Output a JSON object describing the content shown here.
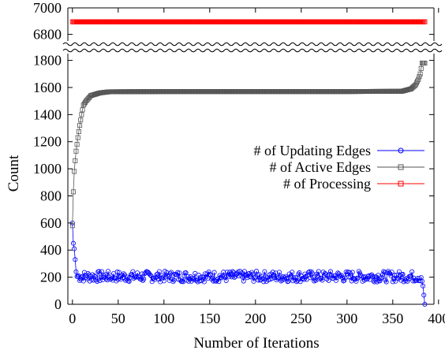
{
  "chart_data": {
    "type": "line",
    "xlabel": "Number of Iterations",
    "ylabel": "Count",
    "xlim": [
      -5,
      395
    ],
    "x_ticks": [
      0,
      50,
      100,
      150,
      200,
      250,
      300,
      350,
      400
    ],
    "y_lower_range": [
      0,
      1850
    ],
    "y_lower_ticks": [
      0,
      200,
      400,
      600,
      800,
      1000,
      1200,
      1400,
      1600,
      1800
    ],
    "y_upper_range": [
      6750,
      7000
    ],
    "y_upper_ticks": [
      6800,
      7000
    ],
    "axis_break": true,
    "grid": false,
    "legend_position": "right-middle",
    "iterations": 386,
    "series": [
      {
        "name": "# of Updating Edges",
        "color": "#0000ff",
        "marker": "circle",
        "key_values": [
          {
            "x": 0,
            "y": 600
          },
          {
            "x": 1,
            "y": 450
          },
          {
            "x": 2,
            "y": 410
          },
          {
            "x": 3,
            "y": 330
          },
          {
            "x": 4,
            "y": 240
          },
          {
            "x": 6,
            "y": 170
          },
          {
            "x": 10,
            "y": 220
          },
          {
            "x": 50,
            "y": 200
          },
          {
            "x": 100,
            "y": 200
          },
          {
            "x": 150,
            "y": 200
          },
          {
            "x": 200,
            "y": 200
          },
          {
            "x": 250,
            "y": 200
          },
          {
            "x": 300,
            "y": 200
          },
          {
            "x": 350,
            "y": 200
          },
          {
            "x": 380,
            "y": 240
          },
          {
            "x": 383,
            "y": 135
          },
          {
            "x": 385,
            "y": 0
          }
        ],
        "steady_mean": 205,
        "steady_amplitude": 40
      },
      {
        "name": "# of Active Edges",
        "color": "#555555",
        "marker": "square",
        "key_values": [
          {
            "x": 0,
            "y": 580
          },
          {
            "x": 1,
            "y": 830
          },
          {
            "x": 2,
            "y": 980
          },
          {
            "x": 3,
            "y": 1060
          },
          {
            "x": 4,
            "y": 1130
          },
          {
            "x": 6,
            "y": 1230
          },
          {
            "x": 8,
            "y": 1320
          },
          {
            "x": 10,
            "y": 1400
          },
          {
            "x": 12,
            "y": 1470
          },
          {
            "x": 15,
            "y": 1500
          },
          {
            "x": 20,
            "y": 1540
          },
          {
            "x": 30,
            "y": 1560
          },
          {
            "x": 40,
            "y": 1568
          },
          {
            "x": 100,
            "y": 1570
          },
          {
            "x": 200,
            "y": 1570
          },
          {
            "x": 300,
            "y": 1570
          },
          {
            "x": 360,
            "y": 1572
          },
          {
            "x": 370,
            "y": 1590
          },
          {
            "x": 375,
            "y": 1620
          },
          {
            "x": 378,
            "y": 1660
          },
          {
            "x": 380,
            "y": 1700
          },
          {
            "x": 382,
            "y": 1780
          },
          {
            "x": 385,
            "y": 1780
          }
        ]
      },
      {
        "name": "# of Processing",
        "color": "#ff0000",
        "marker": "square",
        "key_values": [
          {
            "x": 0,
            "y": 6895
          },
          {
            "x": 385,
            "y": 6895
          }
        ]
      }
    ]
  }
}
